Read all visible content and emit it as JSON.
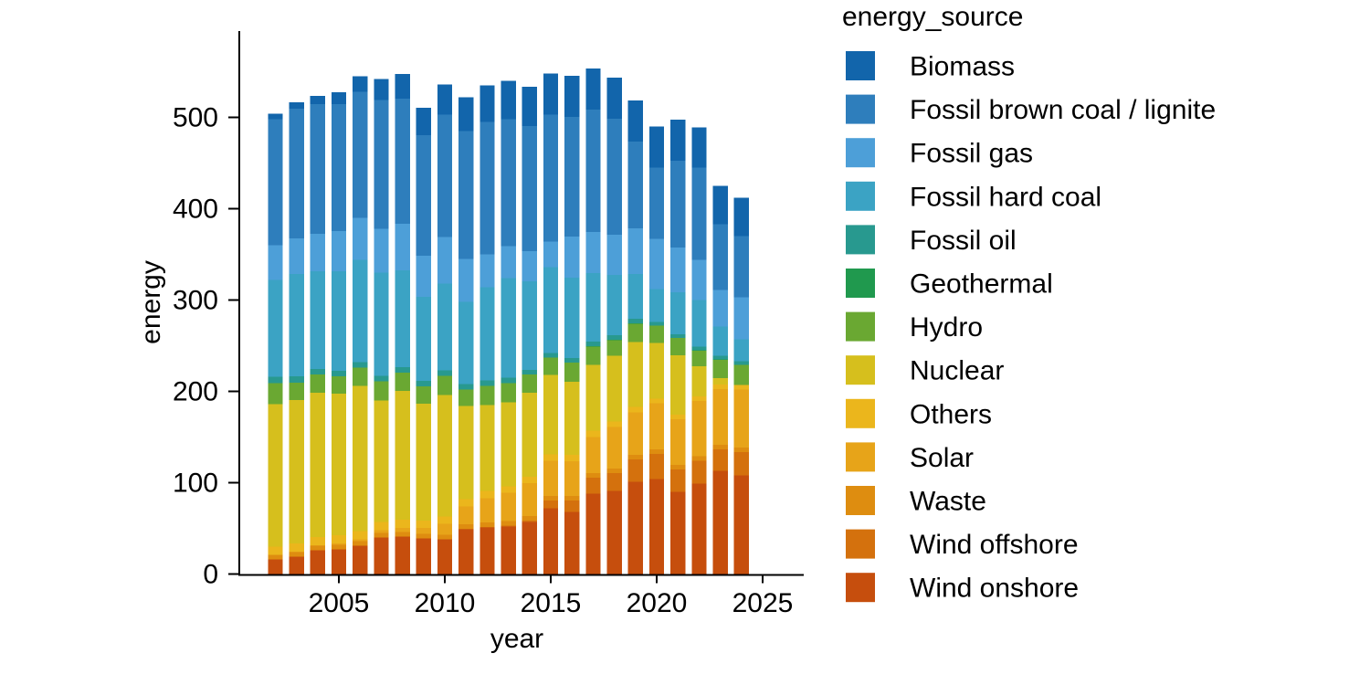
{
  "figure": {
    "background_color": "#ffffff",
    "axis_color": "#000000",
    "text_color": "#000000"
  },
  "axes": {
    "x_title": "year",
    "y_title": "energy",
    "x_tick_labels": [
      "2005",
      "2010",
      "2015",
      "2020",
      "2025"
    ],
    "y_tick_labels": [
      "0",
      "100",
      "200",
      "300",
      "400",
      "500"
    ]
  },
  "legend": {
    "title": "energy_source",
    "entries": [
      "Biomass",
      "Fossil brown coal / lignite",
      "Fossil gas",
      "Fossil hard coal",
      "Fossil oil",
      "Geothermal",
      "Hydro",
      "Nuclear",
      "Others",
      "Solar",
      "Waste",
      "Wind offshore",
      "Wind onshore"
    ]
  },
  "chart_data": {
    "type": "bar",
    "stacked": true,
    "stack_order": "first series at top of stack, last series at bottom",
    "title": "",
    "xlabel": "year",
    "ylabel": "energy",
    "legend_title": "energy_source",
    "legend_position": "right",
    "grid": false,
    "x": [
      2002,
      2003,
      2004,
      2005,
      2006,
      2007,
      2008,
      2009,
      2010,
      2011,
      2012,
      2013,
      2014,
      2015,
      2016,
      2017,
      2018,
      2019,
      2020,
      2021,
      2022,
      2023,
      2024
    ],
    "x_ticks": [
      2005,
      2010,
      2015,
      2020,
      2025
    ],
    "y_ticks": [
      0,
      100,
      200,
      300,
      400,
      500
    ],
    "ylim": [
      0,
      560
    ],
    "series": [
      {
        "name": "Biomass",
        "color": "#1265ab",
        "values": [
          6,
          7,
          9,
          13,
          17,
          23,
          27,
          30,
          33,
          37,
          40,
          42,
          43,
          45,
          45,
          45,
          45,
          45,
          45,
          45,
          44,
          42,
          42
        ]
      },
      {
        "name": "Fossil brown coal / lignite",
        "color": "#2e7ebc",
        "values": [
          138,
          142,
          142,
          139,
          138,
          141,
          137,
          132,
          134,
          140,
          145,
          139,
          137,
          139,
          131,
          134,
          127,
          95,
          78,
          95,
          101,
          72,
          67
        ]
      },
      {
        "name": "Fossil gas",
        "color": "#4d9fd8",
        "values": [
          38,
          39,
          41,
          44,
          46,
          48,
          51,
          45,
          51,
          47,
          36,
          35,
          33,
          28,
          45,
          45,
          44,
          50,
          55,
          49,
          44,
          40,
          46
        ]
      },
      {
        "name": "Fossil hard coal",
        "color": "#3ba3c4",
        "values": [
          106,
          112,
          107,
          109,
          112,
          113,
          106,
          92,
          95,
          90,
          102,
          109,
          97,
          94,
          88,
          75,
          66,
          49,
          36,
          46,
          51,
          32,
          24
        ]
      },
      {
        "name": "Fossil oil",
        "color": "#28998f",
        "values": [
          7,
          7,
          6,
          6,
          6,
          6,
          6,
          6,
          6,
          6,
          6,
          6,
          5,
          5,
          5,
          5,
          5,
          5,
          4,
          4,
          4,
          4,
          4
        ]
      },
      {
        "name": "Geothermal",
        "color": "#20994e",
        "values": [
          0,
          0,
          0,
          0,
          0,
          0,
          0,
          0,
          0,
          0,
          0,
          0,
          0.1,
          0.1,
          0.2,
          0.2,
          0.2,
          0.2,
          0.2,
          0.2,
          0.2,
          0.2,
          0.2
        ]
      },
      {
        "name": "Hydro",
        "color": "#6aa832",
        "values": [
          23,
          19,
          20,
          19,
          20,
          21,
          20,
          19,
          21,
          18,
          21,
          21,
          20,
          19,
          21,
          20,
          17,
          20,
          19,
          19,
          17,
          20,
          22
        ]
      },
      {
        "name": "Nuclear",
        "color": "#d6bf1d",
        "values": [
          156,
          157,
          158,
          155,
          159,
          133,
          141,
          128,
          133,
          102,
          94,
          92,
          92,
          87,
          80,
          72,
          72,
          71,
          61,
          65,
          33,
          7,
          0
        ]
      },
      {
        "name": "Others",
        "color": "#ebb61c",
        "values": [
          9,
          9,
          9,
          9,
          9,
          9,
          9,
          8,
          8,
          8,
          8,
          7,
          7,
          7,
          7,
          7,
          6,
          6,
          5,
          5,
          5,
          5,
          5
        ]
      },
      {
        "name": "Solar",
        "color": "#e7a419",
        "values": [
          0.2,
          0.3,
          0.6,
          1.3,
          2.2,
          3.1,
          4.4,
          6.6,
          11.7,
          19.6,
          26.4,
          31,
          36.1,
          38.7,
          38.1,
          39.4,
          45.8,
          46.5,
          50.7,
          50,
          60.8,
          61.1,
          63.3
        ]
      },
      {
        "name": "Waste",
        "color": "#de8d10",
        "values": [
          5,
          5,
          5,
          5,
          5,
          5,
          5,
          5,
          5,
          5,
          5,
          5,
          5,
          5,
          5,
          5,
          5,
          5,
          5,
          5,
          5,
          5,
          5
        ]
      },
      {
        "name": "Wind offshore",
        "color": "#d4710d",
        "values": [
          0,
          0,
          0,
          0,
          0,
          0,
          0,
          0,
          0.2,
          0.6,
          0.7,
          0.9,
          1.4,
          8.3,
          12.4,
          17.7,
          19.3,
          24.7,
          27.3,
          24.4,
          24.8,
          23.5,
          25.7
        ]
      },
      {
        "name": "Wind onshore",
        "color": "#c64e0d",
        "values": [
          16,
          19,
          26,
          27,
          31,
          40,
          41,
          39,
          38,
          49,
          51,
          52,
          57,
          72,
          68,
          88,
          91,
          101,
          104,
          90,
          99,
          113,
          108
        ]
      }
    ]
  }
}
